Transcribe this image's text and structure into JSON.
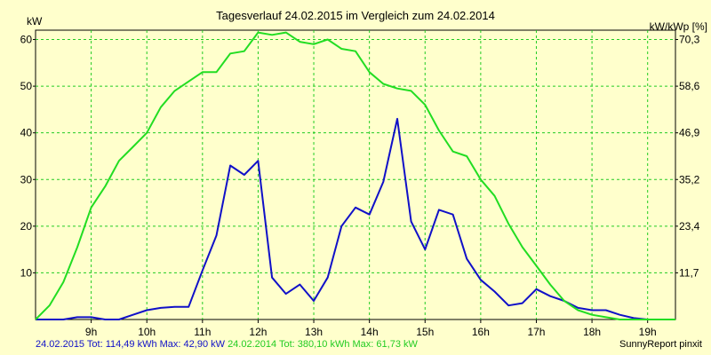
{
  "chart_data": {
    "type": "line",
    "title": "Tagesverlauf 24.02.2015 im Vergleich zum 24.02.2014",
    "ylabel_left": "kW",
    "ylabel_right": "kW/kWp [%]",
    "xlim": [
      8.0,
      19.5
    ],
    "ylim": [
      0,
      62
    ],
    "x_ticks": [
      9,
      10,
      11,
      12,
      13,
      14,
      15,
      16,
      17,
      18,
      19
    ],
    "x_tick_labels": [
      "9h",
      "10h",
      "11h",
      "12h",
      "13h",
      "14h",
      "15h",
      "16h",
      "17h",
      "18h",
      "19h"
    ],
    "y_ticks": [
      10,
      20,
      30,
      40,
      50,
      60
    ],
    "y_tick_labels": [
      "10",
      "20",
      "30",
      "40",
      "50",
      "60"
    ],
    "y2_tick_labels": [
      "11,7",
      "23,4",
      "35,2",
      "46,9",
      "58,6",
      "70,3"
    ],
    "grid": true,
    "series": [
      {
        "name": "24.02.2015",
        "color": "#1010c8",
        "x": [
          8.0,
          8.25,
          8.5,
          8.75,
          9.0,
          9.25,
          9.5,
          9.75,
          10.0,
          10.25,
          10.5,
          10.75,
          11.0,
          11.25,
          11.5,
          11.75,
          12.0,
          12.25,
          12.5,
          12.75,
          13.0,
          13.25,
          13.5,
          13.75,
          14.0,
          14.25,
          14.5,
          14.75,
          15.0,
          15.25,
          15.5,
          15.75,
          16.0,
          16.25,
          16.5,
          16.75,
          17.0,
          17.25,
          17.5,
          17.75,
          18.0,
          18.25,
          18.5,
          18.75,
          19.0,
          19.25,
          19.5
        ],
        "y": [
          0,
          0,
          0,
          0.5,
          0.5,
          0,
          0,
          1,
          2,
          2.5,
          2.7,
          2.7,
          10.5,
          18,
          33,
          31,
          34,
          9,
          5.5,
          7.5,
          4,
          9,
          20,
          24,
          22.5,
          29.5,
          43,
          21,
          15,
          23.5,
          22.5,
          13,
          8.5,
          6,
          3,
          3.5,
          6.5,
          5,
          4,
          2.5,
          2,
          2,
          1,
          0.3,
          0,
          0,
          0
        ]
      },
      {
        "name": "24.02.2014",
        "color": "#22dd22",
        "x": [
          8.0,
          8.25,
          8.5,
          8.75,
          9.0,
          9.25,
          9.5,
          9.75,
          10.0,
          10.25,
          10.5,
          10.75,
          11.0,
          11.25,
          11.5,
          11.75,
          12.0,
          12.25,
          12.5,
          12.75,
          13.0,
          13.25,
          13.5,
          13.75,
          14.0,
          14.25,
          14.5,
          14.75,
          15.0,
          15.25,
          15.5,
          15.75,
          16.0,
          16.25,
          16.5,
          16.75,
          17.0,
          17.25,
          17.5,
          17.75,
          18.0,
          18.25,
          18.5,
          18.75,
          19.0,
          19.25,
          19.5
        ],
        "y": [
          0,
          3,
          8,
          15.5,
          24,
          28.5,
          34,
          37,
          40,
          45.5,
          49,
          51,
          53,
          53,
          57,
          57.5,
          61.5,
          61,
          61.5,
          59.5,
          59,
          60,
          58,
          57.5,
          53,
          50.5,
          49.5,
          49,
          46,
          40.5,
          36,
          35,
          30,
          26.5,
          20.5,
          15.5,
          11.5,
          7.5,
          4,
          2,
          1,
          0.5,
          0,
          0,
          0,
          0,
          0
        ]
      }
    ],
    "footer": {
      "s1_label": "24.02.2015 Tot: 114,49 kWh Max: 42,90 kW",
      "s2_label": "24.02.2014 Tot: 380,10 kWh Max: 61,73 kW",
      "credit": "SunnyReport pinxit"
    }
  }
}
